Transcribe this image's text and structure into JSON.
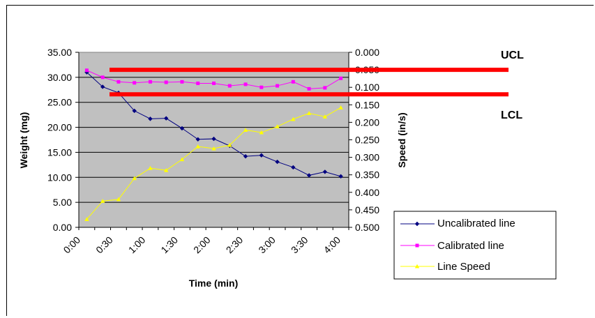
{
  "chart_data": {
    "type": "line",
    "title": "",
    "xlabel": "Time (min)",
    "ylabel": "Weight (mg)",
    "y2label": "Speed (in/s)",
    "x_tick_labels": [
      "0:00",
      "0:30",
      "1:00",
      "1:30",
      "2:00",
      "2:30",
      "3:00",
      "3:30",
      "4:00"
    ],
    "y_ticks": [
      "0.00",
      "5.00",
      "10.00",
      "15.00",
      "20.00",
      "25.00",
      "30.00",
      "35.00"
    ],
    "y2_ticks": [
      "0.000",
      "0.050",
      "0.100",
      "0.150",
      "0.200",
      "0.250",
      "0.300",
      "0.350",
      "0.400",
      "0.450",
      "0.500"
    ],
    "ylim": [
      0,
      35
    ],
    "y2lim": [
      0,
      0.5
    ],
    "y2_inverted": true,
    "grid": true,
    "legend_position": "bottom-right",
    "series": [
      {
        "name": "Uncalibrated line",
        "axis": "left",
        "color": "#000080",
        "marker": "diamond",
        "values": [
          31.0,
          28.1,
          26.9,
          23.3,
          21.7,
          21.8,
          19.8,
          17.6,
          17.7,
          16.3,
          14.2,
          14.4,
          13.1,
          12.0,
          10.4,
          11.1,
          10.2
        ]
      },
      {
        "name": "Calibrated line",
        "axis": "left",
        "color": "#ff00ff",
        "marker": "square",
        "values": [
          31.4,
          30.0,
          29.1,
          28.9,
          29.1,
          29.0,
          29.1,
          28.8,
          28.8,
          28.3,
          28.6,
          28.0,
          28.3,
          29.1,
          27.7,
          27.9,
          29.8
        ]
      },
      {
        "name": "Line Speed",
        "axis": "right",
        "color": "#ffff00",
        "marker": "triangle",
        "values": [
          0.477,
          0.425,
          0.42,
          0.36,
          0.331,
          0.337,
          0.306,
          0.269,
          0.275,
          0.265,
          0.222,
          0.229,
          0.212,
          0.191,
          0.174,
          0.184,
          0.158
        ]
      }
    ],
    "control_limits": [
      {
        "label": "UCL",
        "value": 0.05,
        "axis": "right",
        "color": "#ff0000"
      },
      {
        "label": "LCL",
        "value": 0.12,
        "axis": "right",
        "color": "#ff0000"
      }
    ]
  }
}
